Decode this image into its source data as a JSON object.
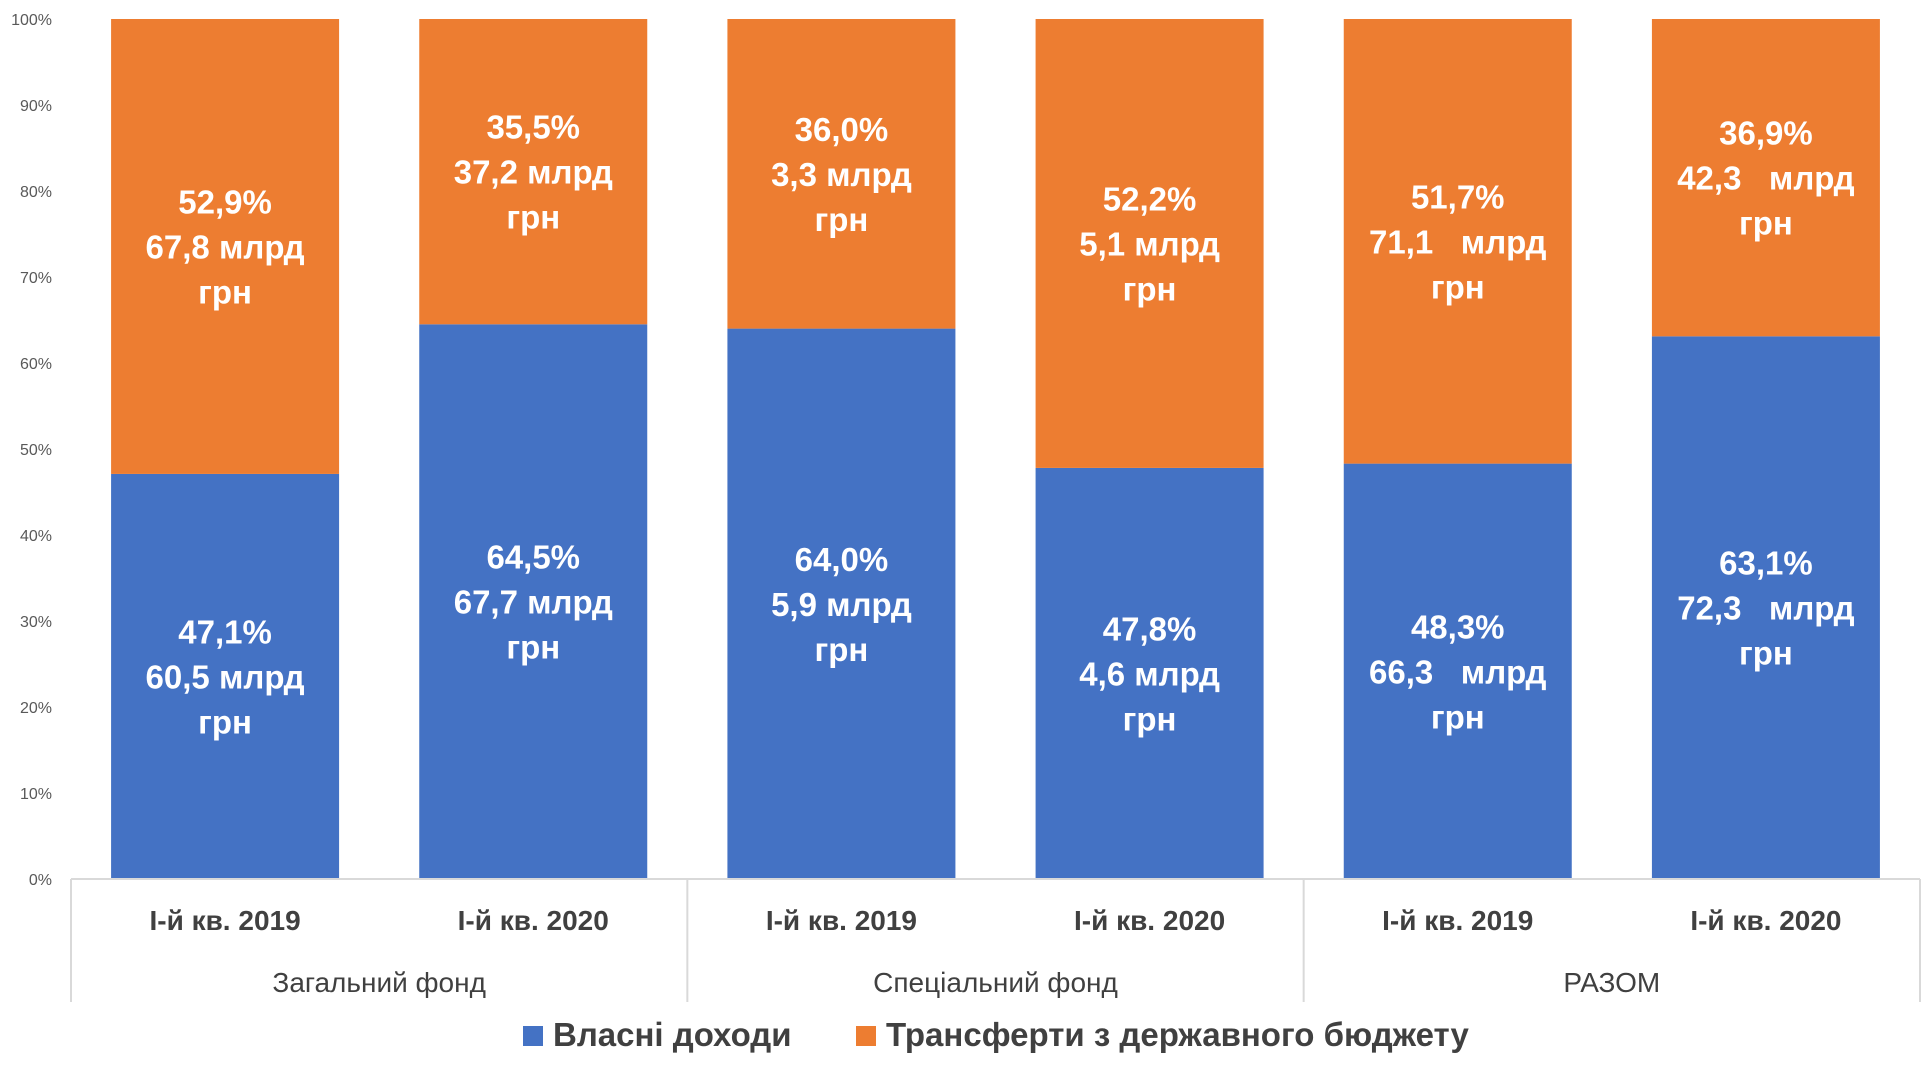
{
  "chart_data": {
    "type": "bar",
    "stacked": true,
    "percent_stacked": true,
    "title": "",
    "xlabel": "",
    "ylabel": "",
    "ylim": [
      0,
      100
    ],
    "y_ticks": [
      "0%",
      "10%",
      "20%",
      "30%",
      "40%",
      "50%",
      "60%",
      "70%",
      "80%",
      "90%",
      "100%"
    ],
    "grid": false,
    "legend_position": "bottom",
    "categories": [
      "І-й кв. 2019",
      "І-й кв. 2020",
      "І-й кв. 2019",
      "І-й кв. 2020",
      "І-й кв. 2019",
      "І-й кв. 2020"
    ],
    "groups": [
      {
        "label": "Загальний фонд",
        "span": 2
      },
      {
        "label": "Спеціальний фонд",
        "span": 2
      },
      {
        "label": "РАЗОМ",
        "span": 2
      }
    ],
    "series": [
      {
        "name": "Власні доходи",
        "color": "#4472C4",
        "values": [
          47.1,
          64.5,
          64.0,
          47.8,
          48.3,
          63.1
        ],
        "labels": [
          [
            "47,1%",
            "60,5 млрд",
            "грн"
          ],
          [
            "64,5%",
            "67,7 млрд",
            "грн"
          ],
          [
            "64,0%",
            "5,9 млрд",
            "грн"
          ],
          [
            "47,8%",
            "4,6 млрд",
            "грн"
          ],
          [
            "48,3%",
            "66,3   млрд",
            "грн"
          ],
          [
            "63,1%",
            "72,3   млрд",
            "грн"
          ]
        ]
      },
      {
        "name": "Трансферти з державного бюджету",
        "color": "#ED7D31",
        "values": [
          52.9,
          35.5,
          36.0,
          52.2,
          51.7,
          36.9
        ],
        "labels": [
          [
            "52,9%",
            "67,8 млрд",
            "грн"
          ],
          [
            "35,5%",
            "37,2 млрд",
            "грн"
          ],
          [
            "36,0%",
            "3,3 млрд",
            "грн"
          ],
          [
            "52,2%",
            "5,1 млрд",
            "грн"
          ],
          [
            "51,7%",
            "71,1   млрд",
            "грн"
          ],
          [
            "36,9%",
            "42,3   млрд",
            "грн"
          ]
        ]
      }
    ]
  }
}
